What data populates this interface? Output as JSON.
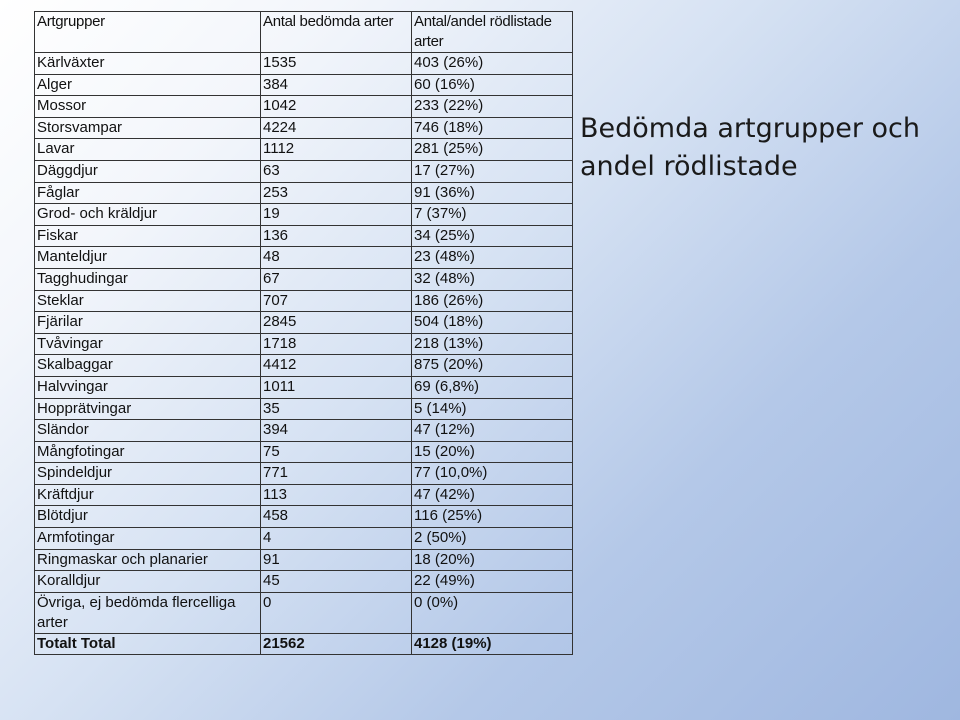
{
  "title": "Bedömda artgrupper och andel rödlistade",
  "table": {
    "headers": [
      "Artgrupper",
      "Antal bedömda arter",
      "Antal/andel rödlistade arter"
    ],
    "rows": [
      [
        "Kärlväxter",
        "1535",
        "403 (26%)"
      ],
      [
        "Alger",
        "384",
        "60 (16%)"
      ],
      [
        "Mossor",
        "1042",
        "233 (22%)"
      ],
      [
        "Storsvampar",
        "4224",
        "746 (18%)"
      ],
      [
        "Lavar",
        "1112",
        "281 (25%)"
      ],
      [
        "Däggdjur",
        "63",
        "17 (27%)"
      ],
      [
        "Fåglar",
        "253",
        "91 (36%)"
      ],
      [
        "Grod- och kräldjur",
        "19",
        "7 (37%)"
      ],
      [
        "Fiskar",
        "136",
        "34 (25%)"
      ],
      [
        "Manteldjur",
        "48",
        "23 (48%)"
      ],
      [
        "Tagghudingar",
        "67",
        "32 (48%)"
      ],
      [
        "Steklar",
        "707",
        "186 (26%)"
      ],
      [
        "Fjärilar",
        "2845",
        "504 (18%)"
      ],
      [
        "Tvåvingar",
        "1718",
        "218 (13%)"
      ],
      [
        "Skalbaggar",
        "4412",
        "875 (20%)"
      ],
      [
        "Halvvingar",
        "1011",
        "69 (6,8%)"
      ],
      [
        "Hopprätvingar",
        "35",
        "5 (14%)"
      ],
      [
        "Sländor",
        "394",
        "47 (12%)"
      ],
      [
        "Mångfotingar",
        "75",
        "15 (20%)"
      ],
      [
        "Spindeldjur",
        "771",
        "77 (10,0%)"
      ],
      [
        "Kräftdjur",
        "113",
        "47 (42%)"
      ],
      [
        "Blötdjur",
        "458",
        "116 (25%)"
      ],
      [
        "Armfotingar",
        "4",
        "2 (50%)"
      ],
      [
        "Ringmaskar och planarier",
        "91",
        "18 (20%)"
      ],
      [
        "Koralldjur",
        "45",
        "22 (49%)"
      ],
      [
        "Övriga, ej bedömda flercelliga arter",
        "0",
        "0 (0%)"
      ]
    ],
    "total": [
      "Totalt Total",
      "21562",
      "4128 (19%)"
    ]
  }
}
